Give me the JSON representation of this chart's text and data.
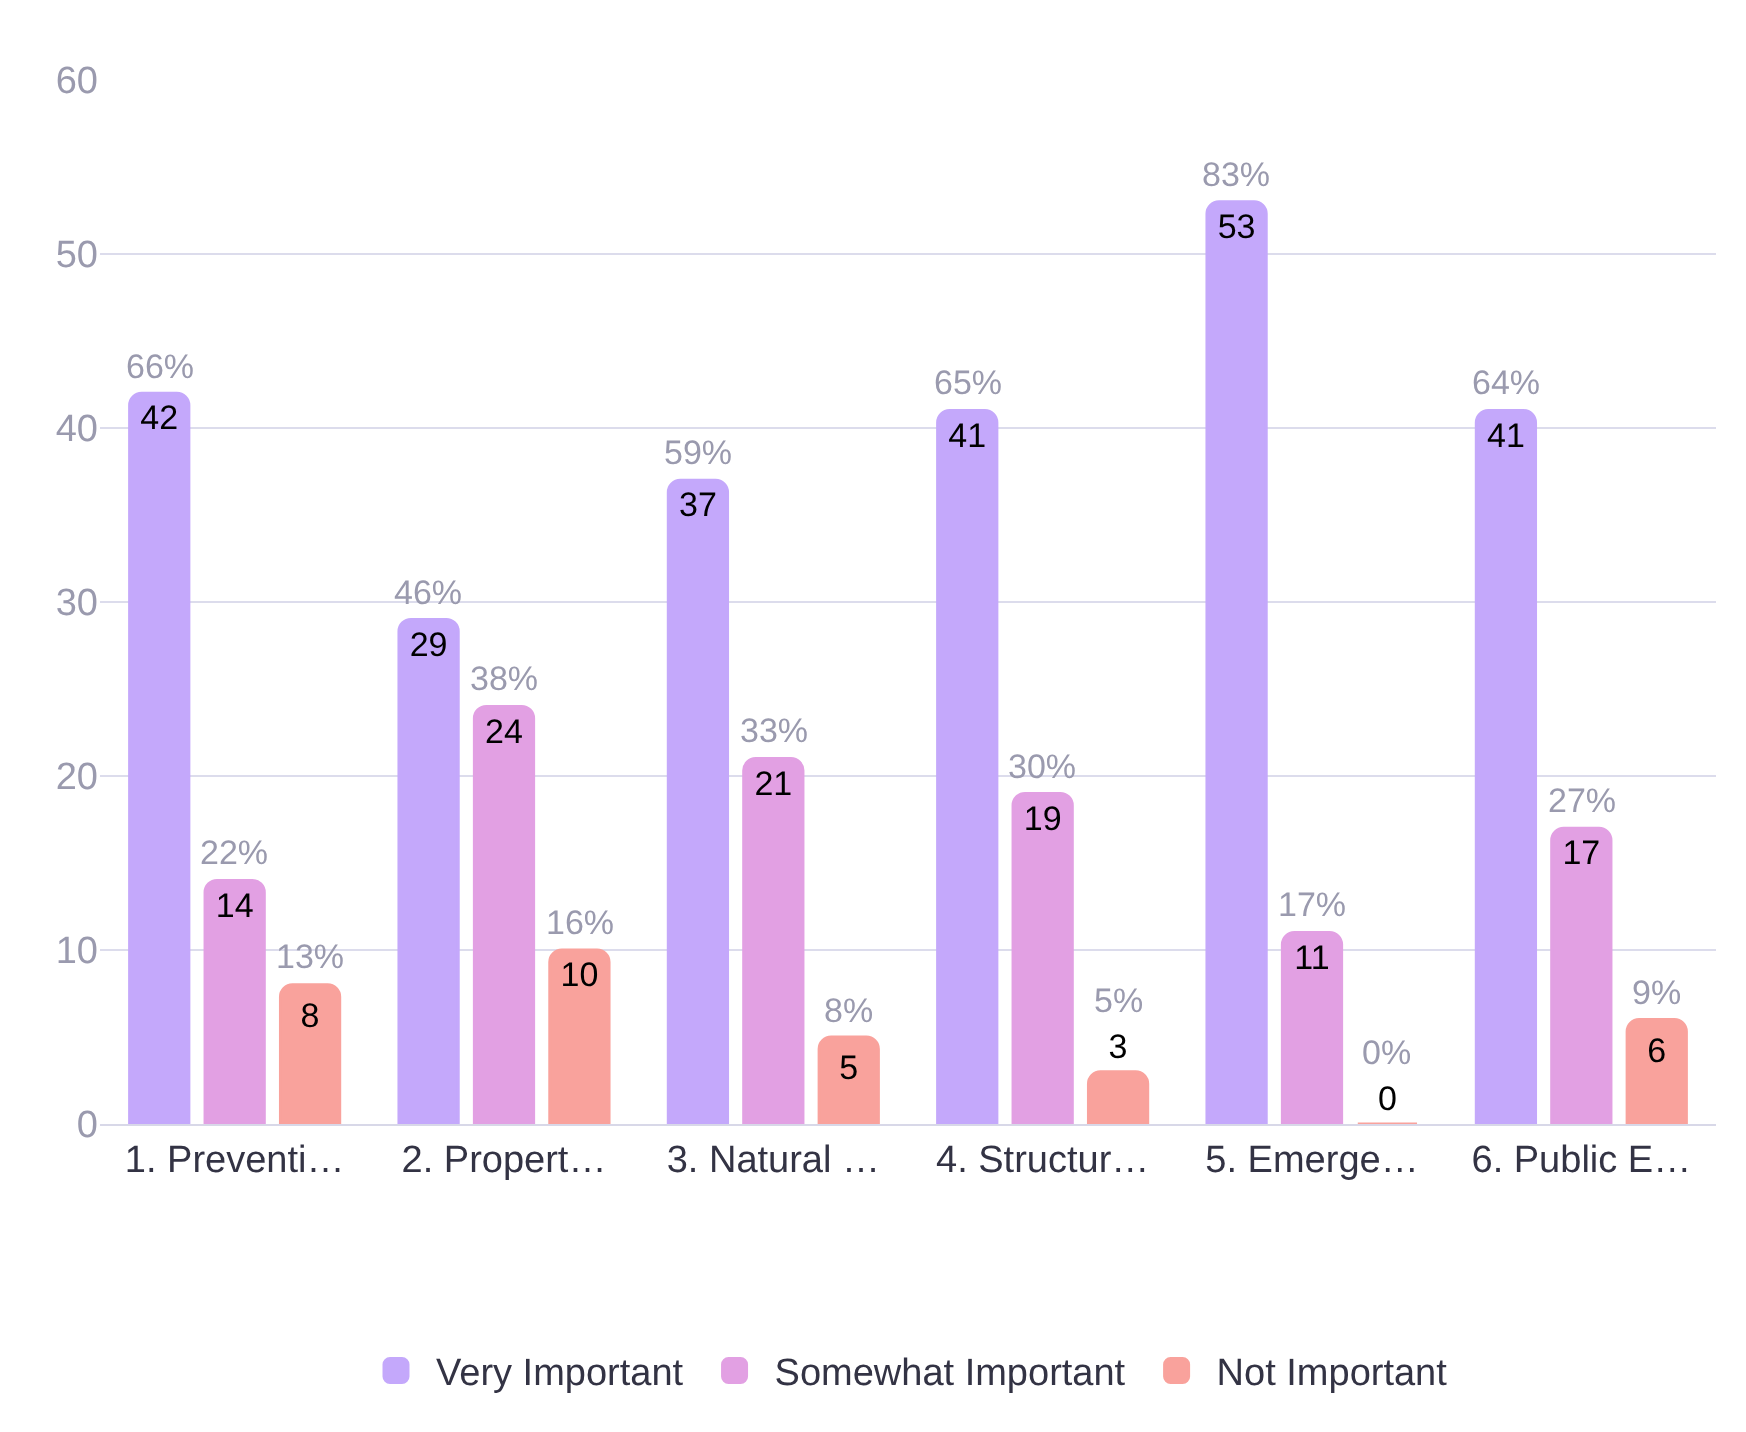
{
  "chart_data": {
    "type": "bar",
    "categories": [
      "1. Preventi…",
      "2. Propert…",
      "3. Natural …",
      "4. Structur…",
      "5. Emerge…",
      "6. Public E…"
    ],
    "series": [
      {
        "name": "Very Important",
        "color": "#c4a8fb",
        "values": [
          42,
          29,
          37,
          41,
          53,
          41
        ]
      },
      {
        "name": "Somewhat Important",
        "color": "#e2a0e3",
        "values": [
          14,
          24,
          21,
          19,
          11,
          17
        ]
      },
      {
        "name": "Not Important",
        "color": "#f9a29c",
        "values": [
          8,
          10,
          5,
          3,
          0,
          6
        ]
      }
    ],
    "annotations": [
      "66%",
      "22%",
      "13%",
      "46%",
      "38%",
      "16%",
      "59%",
      "33%",
      "8%",
      "65%",
      "30%",
      "5%",
      "83%",
      "17%",
      "0%",
      "64%",
      "27%",
      "9%"
    ],
    "ylim": [
      0,
      60
    ],
    "yticks": [
      0,
      10,
      20,
      30,
      40,
      50,
      60
    ],
    "grid": "y",
    "legend": "bottom",
    "data_labels": true
  }
}
